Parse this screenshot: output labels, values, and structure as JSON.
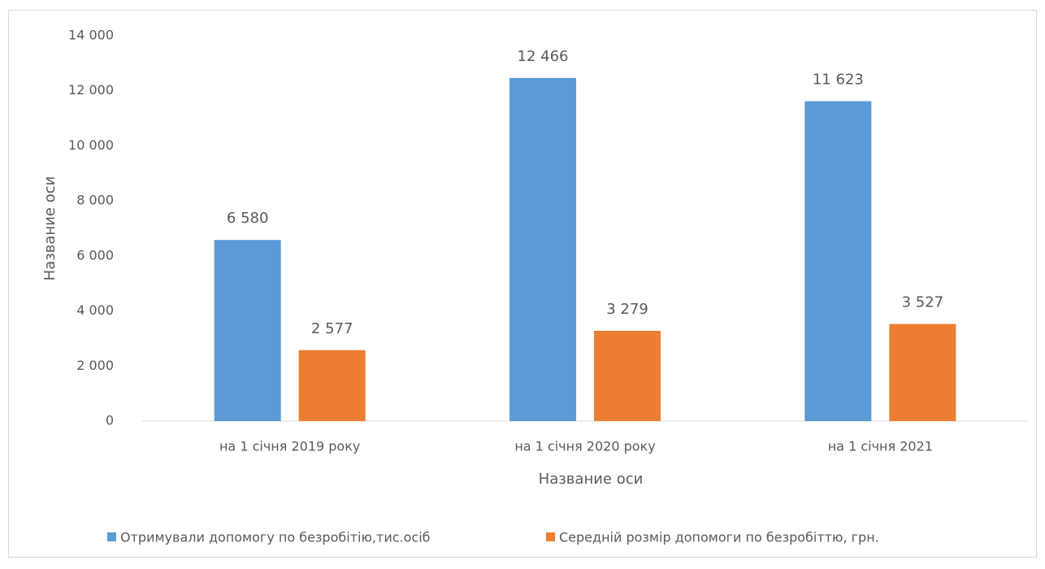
{
  "chart_data": {
    "type": "bar",
    "x_label": "Название оси",
    "y_label": "Название оси",
    "categories": [
      "на 1 січня 2019 року",
      "на 1 січня 2020 року",
      "на 1 січня 2021"
    ],
    "series": [
      {
        "name": "Отримували допомогу по безробітію,тис.осіб",
        "color": "#5b9bd5",
        "values": [
          6580,
          12466,
          11623
        ],
        "value_labels": [
          "6 580",
          "12 466",
          "11 623"
        ]
      },
      {
        "name": "Середній розмір допомоги по безробіттю, грн.",
        "color": "#ed7d31",
        "values": [
          2577,
          3279,
          3527
        ],
        "value_labels": [
          "2 577",
          "3 279",
          "3 527"
        ]
      }
    ],
    "ylim": [
      0,
      14000
    ],
    "yticks": [
      0,
      {
        "value": 2000,
        "label": "2 000"
      },
      {
        "value": 4000,
        "label": "4 000"
      },
      {
        "value": 6000,
        "label": "6 000"
      },
      {
        "value": 8000,
        "label": "8 000"
      },
      {
        "value": 10000,
        "label": "10 000"
      },
      {
        "value": 12000,
        "label": "12 000"
      },
      {
        "value": 14000,
        "label": "14 000"
      }
    ],
    "legend": "bottom",
    "grid": false
  }
}
